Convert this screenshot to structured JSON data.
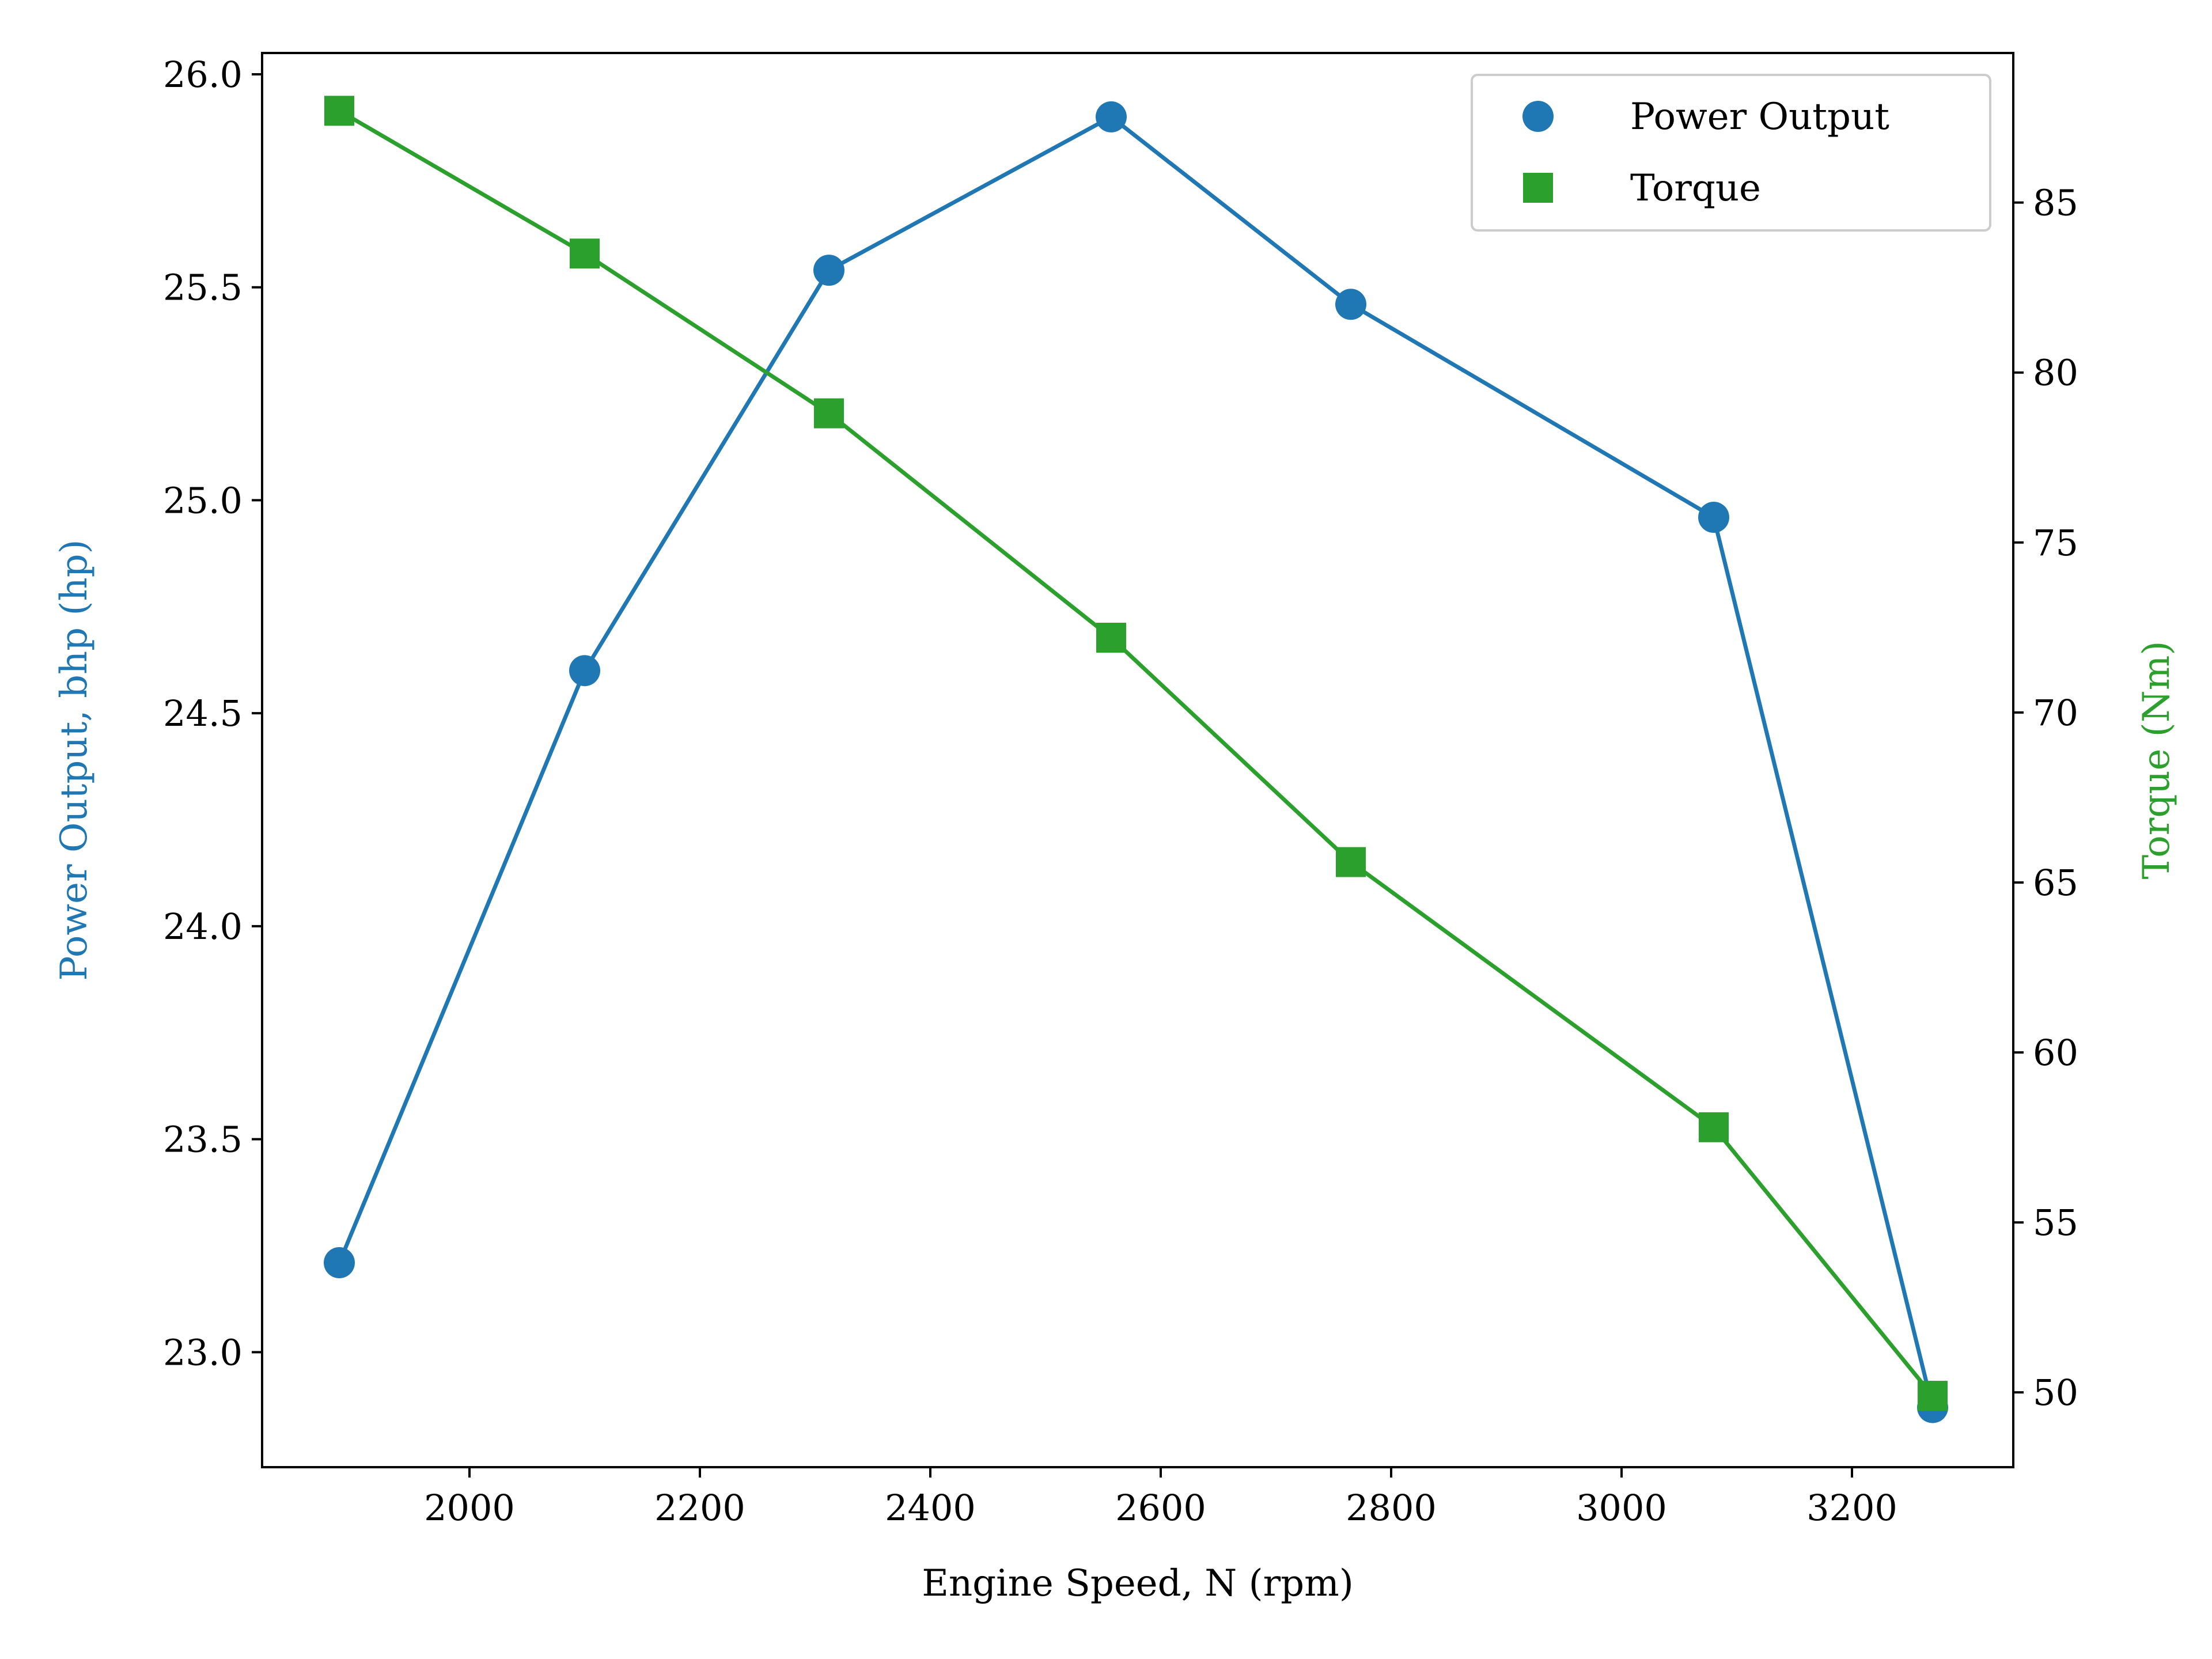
{
  "chart_data": {
    "type": "line",
    "title": "",
    "xlabel": "Engine Speed, N (rpm)",
    "ylabel_left": "Power Output, bhp (hp)",
    "ylabel_right": "Torque (Nm)",
    "x": [
      1887,
      2100,
      2312,
      2557,
      2765,
      3080,
      3270
    ],
    "xlim": [
      1820,
      3340
    ],
    "ylim_left": [
      22.73,
      26.05
    ],
    "ylim_right": [
      47.8,
      89.4
    ],
    "xticks": [
      2000,
      2200,
      2400,
      2600,
      2800,
      3000,
      3200
    ],
    "yticks_left": [
      23.0,
      23.5,
      24.0,
      24.5,
      25.0,
      25.5,
      26.0
    ],
    "yticks_right": [
      50,
      55,
      60,
      65,
      70,
      75,
      80,
      85
    ],
    "grid": false,
    "legend_position": "top-right",
    "series": [
      {
        "name": "Power Output",
        "axis": "left",
        "marker": "circle",
        "color": "#1f77b4",
        "values": [
          23.21,
          24.6,
          25.54,
          25.9,
          25.46,
          24.96,
          22.87
        ]
      },
      {
        "name": "Torque",
        "axis": "right",
        "marker": "square",
        "color": "#2ca02c",
        "values": [
          87.7,
          83.5,
          78.8,
          72.2,
          65.6,
          57.8,
          49.9
        ]
      }
    ]
  }
}
